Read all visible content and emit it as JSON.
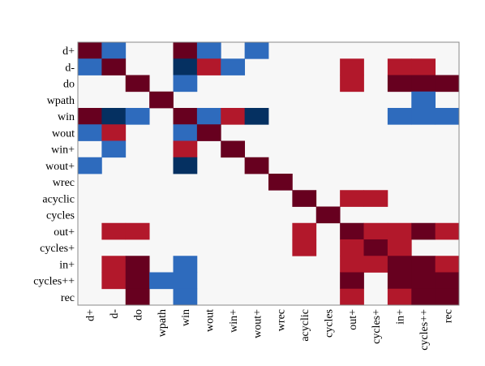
{
  "chart_data": {
    "type": "heatmap",
    "title": "",
    "xlabel": "",
    "ylabel": "",
    "labels": [
      "d+",
      "d-",
      "do",
      "wpath",
      "win",
      "wout",
      "win+",
      "wout+",
      "wrec",
      "acyclic",
      "cycles",
      "out+",
      "cycles+",
      "in+",
      "cycles++",
      "rec"
    ],
    "value_range": [
      -1,
      1
    ],
    "colors": {
      "background": "#f7f7f7",
      "-1": "#053061",
      "-0.5": "#2e6bbd",
      "0.5": "#b2182b",
      "1": "#67001f",
      "frame": "#888888"
    },
    "matrix": [
      [
        1,
        -0.5,
        0,
        0,
        1,
        -0.5,
        0,
        -0.5,
        0,
        0,
        0,
        0,
        0,
        0,
        0,
        0
      ],
      [
        -0.5,
        1,
        0,
        0,
        -1,
        0.5,
        -0.5,
        0,
        0,
        0,
        0,
        0.5,
        0,
        0.5,
        0.5,
        0
      ],
      [
        0,
        0,
        1,
        0,
        -0.5,
        0,
        0,
        0,
        0,
        0,
        0,
        0.5,
        0,
        1,
        1,
        1
      ],
      [
        0,
        0,
        0,
        1,
        0,
        0,
        0,
        0,
        0,
        0,
        0,
        0,
        0,
        0,
        -0.5,
        0
      ],
      [
        1,
        -1,
        -0.5,
        0,
        1,
        -0.5,
        0.5,
        -1,
        0,
        0,
        0,
        0,
        0,
        -0.5,
        -0.5,
        -0.5
      ],
      [
        -0.5,
        0.5,
        0,
        0,
        -0.5,
        1,
        0,
        0,
        0,
        0,
        0,
        0,
        0,
        0,
        0,
        0
      ],
      [
        0,
        -0.5,
        0,
        0,
        0.5,
        0,
        1,
        0,
        0,
        0,
        0,
        0,
        0,
        0,
        0,
        0
      ],
      [
        -0.5,
        0,
        0,
        0,
        -1,
        0,
        0,
        1,
        0,
        0,
        0,
        0,
        0,
        0,
        0,
        0
      ],
      [
        0,
        0,
        0,
        0,
        0,
        0,
        0,
        0,
        1,
        0,
        0,
        0,
        0,
        0,
        0,
        0
      ],
      [
        0,
        0,
        0,
        0,
        0,
        0,
        0,
        0,
        0,
        1,
        0,
        0.5,
        0.5,
        0,
        0,
        0
      ],
      [
        0,
        0,
        0,
        0,
        0,
        0,
        0,
        0,
        0,
        0,
        1,
        0,
        0,
        0,
        0,
        0
      ],
      [
        0,
        0.5,
        0.5,
        0,
        0,
        0,
        0,
        0,
        0,
        0.5,
        0,
        1,
        0.5,
        0.5,
        1,
        0.5
      ],
      [
        0,
        0,
        0,
        0,
        0,
        0,
        0,
        0,
        0,
        0.5,
        0,
        0.5,
        1,
        0.5,
        0,
        0
      ],
      [
        0,
        0.5,
        1,
        0,
        -0.5,
        0,
        0,
        0,
        0,
        0,
        0,
        0.5,
        0.5,
        1,
        1,
        0.5
      ],
      [
        0,
        0.5,
        1,
        -0.5,
        -0.5,
        0,
        0,
        0,
        0,
        0,
        0,
        1,
        0,
        1,
        1,
        1
      ],
      [
        0,
        0,
        1,
        0,
        -0.5,
        0,
        0,
        0,
        0,
        0,
        0,
        0.5,
        0,
        0.5,
        1,
        1
      ]
    ],
    "grid": false,
    "legend": "none"
  }
}
